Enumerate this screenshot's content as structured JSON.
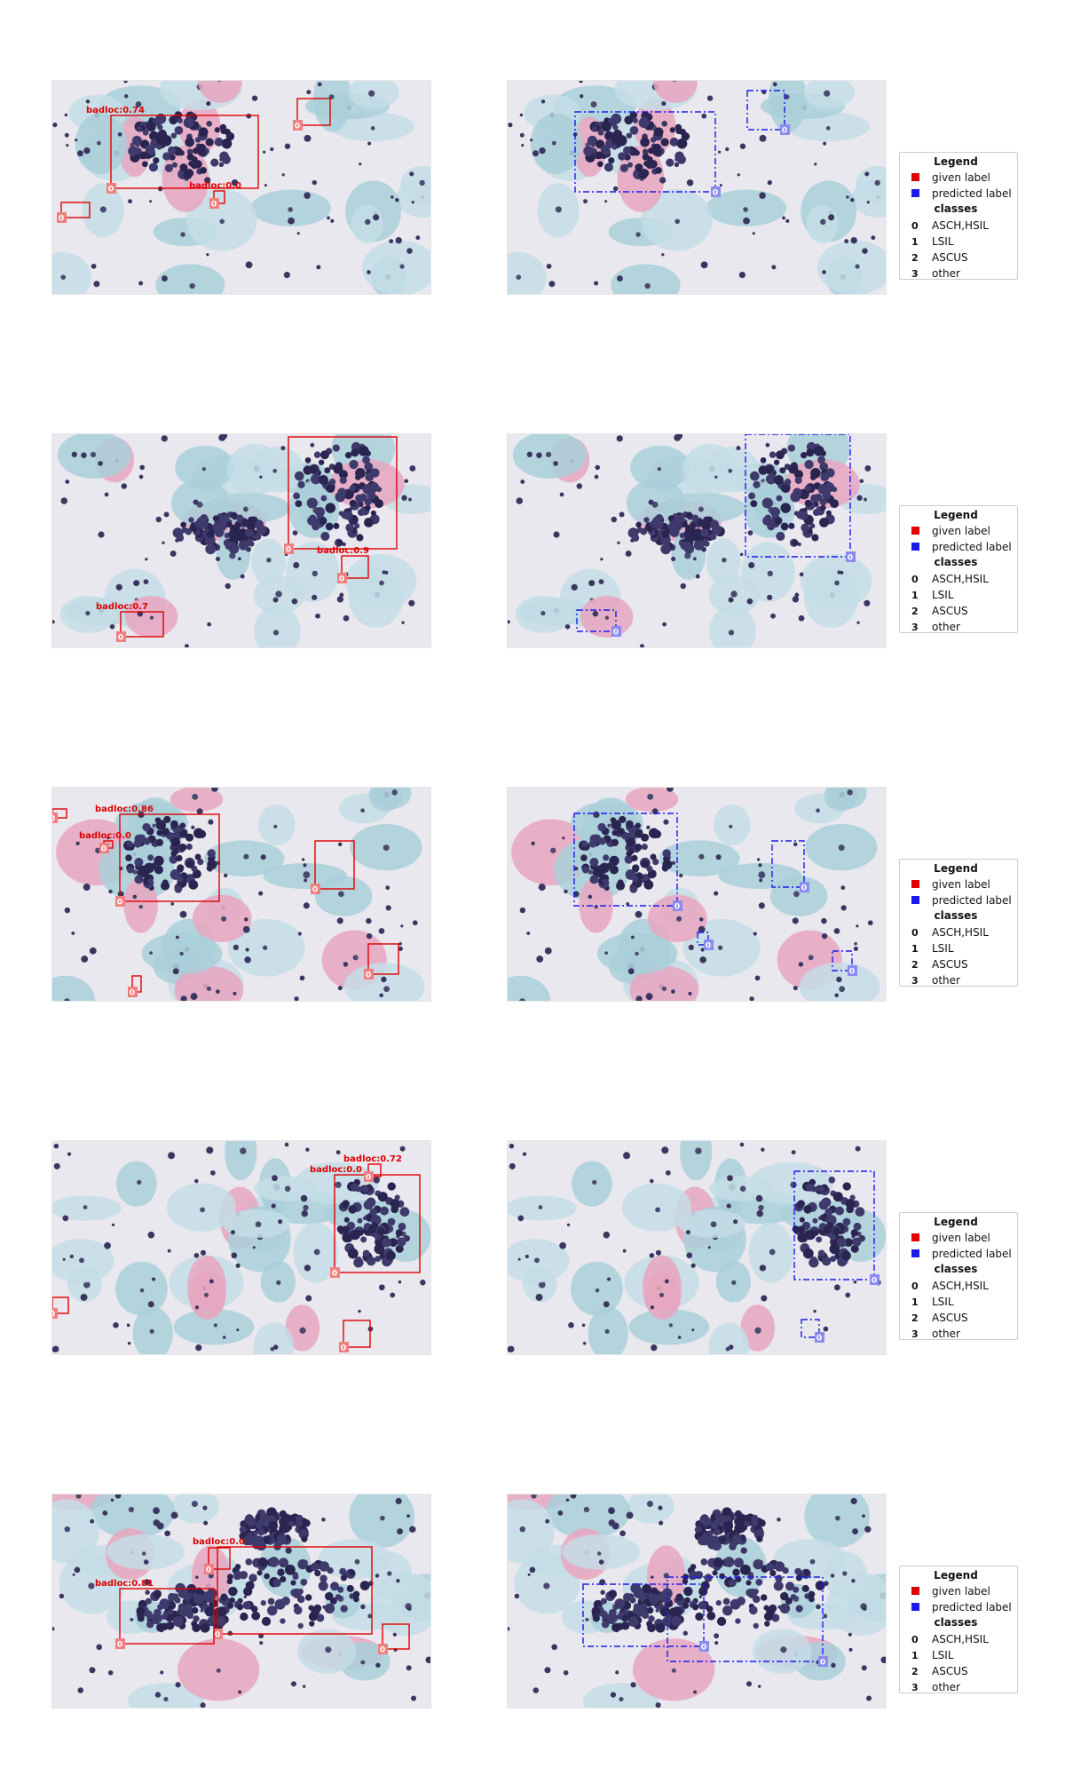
{
  "colors": {
    "given": "#e00000",
    "predicted": "#1a1aee",
    "given_badge": "#f08080",
    "predicted_badge": "#8c8cf0"
  },
  "legend": {
    "title": "Legend",
    "given_label": "given label",
    "predicted_label": "predicted label",
    "classes_title": "classes",
    "classes": [
      {
        "id": "0",
        "name": "ASCH,HSIL"
      },
      {
        "id": "1",
        "name": "LSIL"
      },
      {
        "id": "2",
        "name": "ASCUS"
      },
      {
        "id": "3",
        "name": "other"
      }
    ]
  },
  "rows": [
    {
      "given": [
        {
          "cls": "0",
          "text": "badloc:0.74"
        },
        {
          "cls": "0",
          "text": ""
        },
        {
          "cls": "0",
          "text": "badloc:0.0"
        },
        {
          "cls": "0",
          "text": ""
        }
      ],
      "predicted": [
        {
          "cls": "0"
        },
        {
          "cls": "0"
        }
      ]
    },
    {
      "given": [
        {
          "cls": "0",
          "text": "badloc:0.9"
        },
        {
          "cls": "0",
          "text": "badloc:0.9"
        },
        {
          "cls": "0",
          "text": "badloc:0.7"
        }
      ],
      "predicted": [
        {
          "cls": "0"
        },
        {
          "cls": "0"
        }
      ]
    },
    {
      "given": [
        {
          "cls": "0",
          "text": ""
        },
        {
          "cls": "0",
          "text": "badloc:0.0"
        },
        {
          "cls": "0",
          "text": "badloc:0.86"
        },
        {
          "cls": "0",
          "text": ""
        },
        {
          "cls": "0",
          "text": ""
        },
        {
          "cls": "0",
          "text": ""
        }
      ],
      "predicted": [
        {
          "cls": "0"
        },
        {
          "cls": "0"
        },
        {
          "cls": "0"
        },
        {
          "cls": "0"
        }
      ]
    },
    {
      "given": [
        {
          "cls": "0",
          "text": "badloc:0.0"
        },
        {
          "cls": "0",
          "text": "badloc:0.72"
        },
        {
          "cls": "0",
          "text": ""
        },
        {
          "cls": "0",
          "text": ""
        }
      ],
      "predicted": [
        {
          "cls": "0"
        },
        {
          "cls": "0"
        }
      ]
    },
    {
      "given": [
        {
          "cls": "0",
          "text": "badloc:0.0"
        },
        {
          "cls": "0",
          "text": "badloc:0.81"
        },
        {
          "cls": "0",
          "text": ""
        },
        {
          "cls": "0",
          "text": ""
        }
      ],
      "predicted": [
        {
          "cls": "0"
        },
        {
          "cls": "0"
        }
      ]
    }
  ]
}
